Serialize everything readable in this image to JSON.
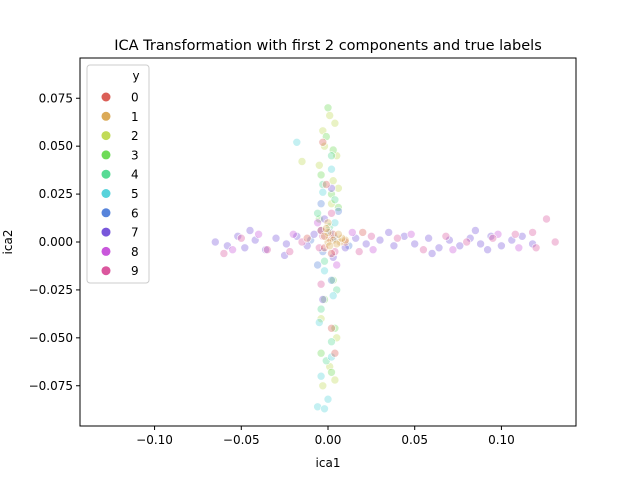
{
  "chart_data": {
    "type": "scatter",
    "title": "ICA Transformation with first 2 components and true labels",
    "xlabel": "ica1",
    "ylabel": "ica2",
    "xlim": [
      -0.143,
      0.143
    ],
    "ylim": [
      -0.096,
      0.096
    ],
    "xticks": [
      -0.1,
      -0.05,
      0.0,
      0.05,
      0.1
    ],
    "xtick_labels": [
      "−0.10",
      "−0.05",
      "0.00",
      "0.05",
      "0.10"
    ],
    "yticks": [
      -0.075,
      -0.05,
      -0.025,
      0.0,
      0.025,
      0.05,
      0.075
    ],
    "ytick_labels": [
      "−0.075",
      "−0.050",
      "−0.025",
      "0.000",
      "0.025",
      "0.050",
      "0.075"
    ],
    "grid": false,
    "legend": {
      "title": "y",
      "placement": "upper-left",
      "entries": [
        "0",
        "1",
        "2",
        "3",
        "4",
        "5",
        "6",
        "7",
        "8",
        "9"
      ],
      "colors": [
        "#db5f57",
        "#dbaa57",
        "#c1db57",
        "#6edb57",
        "#57db94",
        "#57d3db",
        "#5784db",
        "#7957db",
        "#c957db",
        "#db579e"
      ]
    },
    "marker_alpha": 0.35,
    "series": [
      {
        "name": "2",
        "points": [
          [
            -0.003,
            0.058
          ],
          [
            0.004,
            0.062
          ],
          [
            0.001,
            0.066
          ],
          [
            -0.002,
            0.05
          ],
          [
            0.005,
            0.045
          ],
          [
            -0.005,
            0.04
          ],
          [
            0.003,
            0.032
          ],
          [
            -0.015,
            0.042
          ],
          [
            0.006,
            0.028
          ],
          [
            0.002,
            0.02
          ],
          [
            -0.004,
            -0.04
          ],
          [
            0.005,
            -0.05
          ],
          [
            0.001,
            -0.065
          ],
          [
            -0.003,
            -0.075
          ],
          [
            0.004,
            -0.072
          ]
        ]
      },
      {
        "name": "3",
        "points": [
          [
            0.0,
            0.07
          ],
          [
            -0.001,
            0.055
          ],
          [
            0.003,
            0.048
          ],
          [
            -0.004,
            0.035
          ],
          [
            0.002,
            0.025
          ],
          [
            0.006,
            0.018
          ],
          [
            -0.005,
            0.012
          ],
          [
            0.003,
            -0.02
          ],
          [
            -0.002,
            -0.03
          ],
          [
            0.004,
            -0.045
          ],
          [
            -0.004,
            -0.058
          ],
          [
            0.002,
            -0.068
          ]
        ]
      },
      {
        "name": "4",
        "points": [
          [
            0.002,
            0.045
          ],
          [
            -0.003,
            0.03
          ],
          [
            0.004,
            0.022
          ],
          [
            -0.006,
            0.015
          ],
          [
            0.001,
            0.008
          ],
          [
            -0.002,
            -0.01
          ],
          [
            0.005,
            -0.025
          ],
          [
            -0.004,
            -0.035
          ],
          [
            0.002,
            -0.052
          ],
          [
            -0.001,
            -0.062
          ]
        ]
      },
      {
        "name": "5",
        "points": [
          [
            -0.018,
            0.052
          ],
          [
            0.002,
            0.038
          ],
          [
            -0.003,
            0.026
          ],
          [
            0.004,
            0.01
          ],
          [
            -0.002,
            -0.015
          ],
          [
            0.003,
            -0.028
          ],
          [
            -0.005,
            -0.042
          ],
          [
            0.002,
            -0.06
          ],
          [
            -0.004,
            -0.07
          ],
          [
            0.0,
            -0.082
          ],
          [
            -0.006,
            -0.086
          ],
          [
            -0.002,
            -0.087
          ]
        ]
      },
      {
        "name": "6",
        "points": [
          [
            0.001,
            0.005
          ],
          [
            -0.003,
            -0.005
          ],
          [
            0.004,
            0.002
          ],
          [
            -0.006,
            -0.012
          ],
          [
            0.002,
            -0.02
          ],
          [
            -0.01,
            0.001
          ],
          [
            0.012,
            -0.002
          ],
          [
            0.006,
            0.016
          ],
          [
            -0.004,
            0.02
          ]
        ]
      },
      {
        "name": "7",
        "points": [
          [
            -0.065,
            0.0
          ],
          [
            -0.058,
            -0.002
          ],
          [
            -0.052,
            0.003
          ],
          [
            -0.048,
            -0.003
          ],
          [
            -0.042,
            0.001
          ],
          [
            -0.036,
            -0.004
          ],
          [
            -0.03,
            0.002
          ],
          [
            -0.024,
            -0.001
          ],
          [
            -0.018,
            0.003
          ],
          [
            -0.012,
            -0.002
          ],
          [
            -0.008,
            0.004
          ],
          [
            0.01,
            -0.003
          ],
          [
            0.016,
            0.002
          ],
          [
            0.022,
            -0.001
          ],
          [
            0.03,
            0.001
          ],
          [
            0.038,
            -0.002
          ],
          [
            0.044,
            0.003
          ],
          [
            0.05,
            -0.001
          ],
          [
            0.058,
            0.002
          ],
          [
            0.064,
            -0.003
          ],
          [
            0.07,
            0.001
          ],
          [
            0.076,
            -0.002
          ],
          [
            0.082,
            0.002
          ],
          [
            0.088,
            -0.001
          ],
          [
            0.094,
            0.003
          ],
          [
            0.1,
            -0.002
          ],
          [
            0.106,
            0.001
          ],
          [
            0.112,
            0.003
          ],
          [
            0.118,
            -0.001
          ],
          [
            -0.045,
            0.006
          ],
          [
            -0.025,
            -0.007
          ],
          [
            0.035,
            0.005
          ],
          [
            0.06,
            -0.006
          ],
          [
            0.085,
            0.006
          ],
          [
            0.092,
            -0.004
          ],
          [
            -0.002,
            0.012
          ],
          [
            0.003,
            -0.008
          ],
          [
            -0.004,
            0.006
          ],
          [
            0.002,
            0.028
          ],
          [
            -0.003,
            -0.03
          ]
        ]
      },
      {
        "name": "8",
        "points": [
          [
            -0.055,
            -0.004
          ],
          [
            -0.04,
            0.004
          ],
          [
            -0.02,
            0.004
          ],
          [
            0.014,
            0.005
          ],
          [
            0.026,
            -0.004
          ],
          [
            0.048,
            0.004
          ],
          [
            0.072,
            -0.004
          ],
          [
            0.098,
            0.004
          ],
          [
            0.11,
            -0.003
          ],
          [
            -0.006,
            0.01
          ],
          [
            0.005,
            -0.012
          ]
        ]
      },
      {
        "name": "9",
        "points": [
          [
            -0.06,
            -0.006
          ],
          [
            -0.05,
            0.002
          ],
          [
            -0.035,
            -0.004
          ],
          [
            -0.022,
            -0.005
          ],
          [
            -0.015,
            0.0
          ],
          [
            0.018,
            -0.005
          ],
          [
            0.025,
            0.003
          ],
          [
            0.04,
            0.002
          ],
          [
            0.055,
            -0.004
          ],
          [
            0.068,
            0.003
          ],
          [
            0.08,
            0.0
          ],
          [
            0.095,
            0.002
          ],
          [
            0.108,
            0.004
          ],
          [
            0.12,
            -0.003
          ],
          [
            0.126,
            0.012
          ],
          [
            0.131,
            0.0
          ],
          [
            0.118,
            0.005
          ],
          [
            -0.003,
            0.003
          ],
          [
            0.004,
            -0.005
          ],
          [
            -0.005,
            -0.003
          ],
          [
            0.002,
            0.015
          ],
          [
            -0.004,
            -0.022
          ]
        ]
      },
      {
        "name": "0",
        "points": [
          [
            0.001,
            0.002
          ],
          [
            -0.002,
            -0.003
          ],
          [
            0.003,
            0.004
          ],
          [
            -0.004,
            0.006
          ],
          [
            0.002,
            -0.006
          ],
          [
            -0.001,
            0.03
          ],
          [
            0.002,
            -0.045
          ],
          [
            -0.003,
            0.052
          ],
          [
            0.004,
            -0.058
          ],
          [
            0.01,
            0.0
          ],
          [
            -0.012,
            0.002
          ],
          [
            0.02,
            0.005
          ]
        ]
      },
      {
        "name": "1",
        "points": [
          [
            0.0,
            0.01
          ],
          [
            0.0,
            0.005
          ],
          [
            0.003,
            0.001
          ],
          [
            0.007,
            0.0
          ],
          [
            0.01,
            0.001
          ],
          [
            0.0,
            0.0
          ],
          [
            -0.001,
            0.007
          ],
          [
            0.005,
            -0.001
          ],
          [
            0.008,
            0.002
          ],
          [
            -0.002,
            0.003
          ],
          [
            0.006,
            0.004
          ],
          [
            0.001,
            -0.002
          ]
        ]
      }
    ]
  }
}
